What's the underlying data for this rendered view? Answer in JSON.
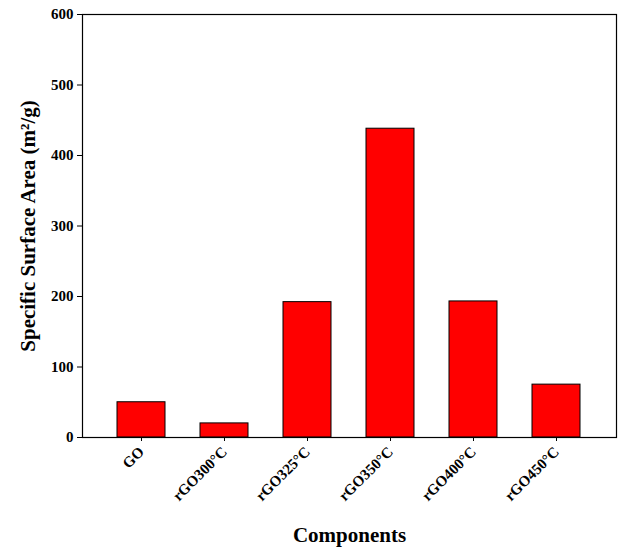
{
  "chart_data": {
    "type": "bar",
    "x_label": "Components",
    "y_label": "Specific Surface Area (m²/g)",
    "categories": [
      "GO",
      "rGO300°C",
      "rGO325°C",
      "rGO350°C",
      "rGO400°C",
      "rGO450°C"
    ],
    "values": [
      50,
      20,
      192,
      438,
      193,
      75
    ],
    "color": "#ff0000",
    "ylim": [
      0,
      600
    ],
    "yticks": [
      0,
      100,
      200,
      300,
      400,
      500,
      600
    ],
    "grid": false
  }
}
